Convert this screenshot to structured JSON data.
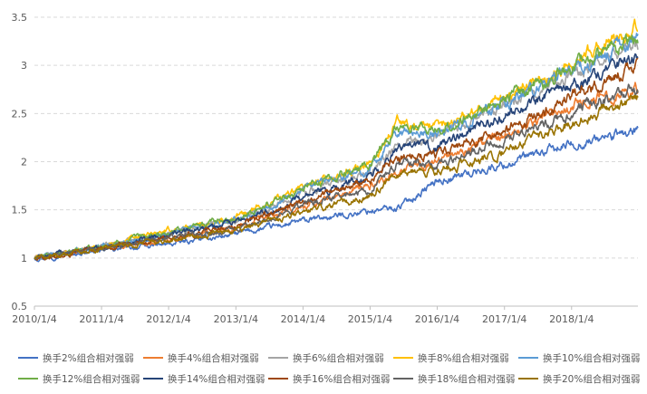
{
  "chart_data": {
    "type": "line",
    "title": "",
    "xlabel": "",
    "ylabel": "",
    "ylim": [
      0.5,
      3.5
    ],
    "yticks": [
      "0.5",
      "1",
      "1.5",
      "2",
      "2.5",
      "3",
      "3.5"
    ],
    "xticks": [
      "2010/1/4",
      "2011/1/4",
      "2012/1/4",
      "2013/1/4",
      "2014/1/4",
      "2015/1/4",
      "2016/1/4",
      "2017/1/4",
      "2018/1/4"
    ],
    "x": [
      "2010/1/4",
      "2011/1/4",
      "2012/1/4",
      "2013/1/4",
      "2014/1/4",
      "2015/1/4",
      "2015/6/1",
      "2016/1/4",
      "2017/1/4",
      "2018/1/4",
      "2018/12/31"
    ],
    "grid": true,
    "legend_position": "bottom",
    "series": [
      {
        "name": "换手2%组合相对强弱",
        "color": "#4472C4",
        "values": [
          1.0,
          1.08,
          1.14,
          1.25,
          1.38,
          1.49,
          1.52,
          1.8,
          1.97,
          2.18,
          2.32
        ]
      },
      {
        "name": "换手4%组合相对强弱",
        "color": "#ED7D31",
        "values": [
          1.0,
          1.1,
          1.2,
          1.31,
          1.53,
          1.75,
          1.9,
          2.02,
          2.28,
          2.6,
          2.76
        ]
      },
      {
        "name": "换手6%组合相对强弱",
        "color": "#A5A5A5",
        "values": [
          1.0,
          1.12,
          1.25,
          1.38,
          1.68,
          1.88,
          2.15,
          2.25,
          2.58,
          2.9,
          3.22
        ]
      },
      {
        "name": "换手8%组合相对强弱",
        "color": "#FFC000",
        "values": [
          1.0,
          1.13,
          1.28,
          1.42,
          1.73,
          1.96,
          2.42,
          2.35,
          2.68,
          3.02,
          3.4
        ]
      },
      {
        "name": "换手10%组合相对强弱",
        "color": "#5B9BD5",
        "values": [
          1.0,
          1.12,
          1.26,
          1.4,
          1.7,
          1.92,
          2.3,
          2.28,
          2.6,
          2.95,
          3.28
        ]
      },
      {
        "name": "换手12%组合相对强弱",
        "color": "#70AD47",
        "values": [
          1.0,
          1.12,
          1.27,
          1.41,
          1.72,
          1.97,
          2.36,
          2.32,
          2.64,
          2.98,
          3.31
        ]
      },
      {
        "name": "换手14%组合相对强弱",
        "color": "#264478",
        "values": [
          1.0,
          1.11,
          1.24,
          1.36,
          1.62,
          1.85,
          2.12,
          2.15,
          2.47,
          2.8,
          3.09
        ]
      },
      {
        "name": "换手16%组合相对强弱",
        "color": "#9E480E",
        "values": [
          1.0,
          1.1,
          1.22,
          1.33,
          1.58,
          1.8,
          2.05,
          2.08,
          2.33,
          2.68,
          3.0
        ]
      },
      {
        "name": "换手18%组合相对强弱",
        "color": "#636363",
        "values": [
          1.0,
          1.1,
          1.21,
          1.3,
          1.55,
          1.72,
          1.97,
          1.98,
          2.22,
          2.52,
          2.77
        ]
      },
      {
        "name": "换手20%组合相对强弱",
        "color": "#997300",
        "values": [
          1.0,
          1.09,
          1.19,
          1.28,
          1.48,
          1.65,
          1.88,
          1.9,
          2.1,
          2.4,
          2.66
        ]
      }
    ]
  }
}
